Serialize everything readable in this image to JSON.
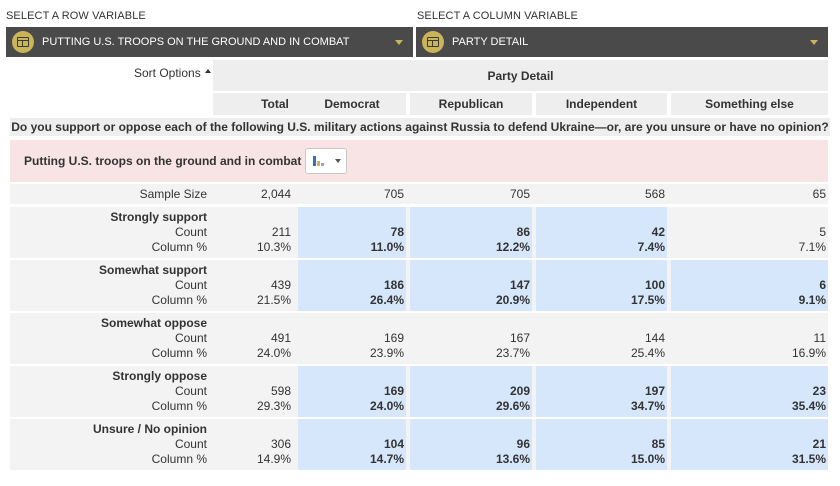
{
  "row_select": {
    "label": "SELECT A ROW VARIABLE",
    "value": "PUTTING U.S. TROOPS ON THE GROUND AND IN COMBAT"
  },
  "col_select": {
    "label": "SELECT A COLUMN VARIABLE",
    "value": "PARTY DETAIL"
  },
  "sort_options": "Sort Options",
  "column_group": "Party Detail",
  "columns": [
    "Total",
    "Democrat",
    "Republican",
    "Independent",
    "Something else"
  ],
  "question": "Do you support or oppose each of the following U.S. military actions against Russia to defend Ukraine—or, are you unsure or have no opinion?",
  "row_variable_title": "Putting U.S. troops on the ground and in combat",
  "chart_type_icon": "bar-chart-icon",
  "sample_size": {
    "label": "Sample Size",
    "values": [
      "2,044",
      "705",
      "705",
      "568",
      "65"
    ]
  },
  "count_label": "Count",
  "colpct_label": "Column %",
  "highlight_color": "#d6e7fb",
  "rows": [
    {
      "label": "Strongly support",
      "counts": [
        "211",
        "78",
        "86",
        "42",
        "5"
      ],
      "pcts": [
        "10.3%",
        "11.0%",
        "12.2%",
        "7.4%",
        "7.1%"
      ],
      "hl": [
        false,
        true,
        true,
        true,
        false
      ]
    },
    {
      "label": "Somewhat support",
      "counts": [
        "439",
        "186",
        "147",
        "100",
        "6"
      ],
      "pcts": [
        "21.5%",
        "26.4%",
        "20.9%",
        "17.5%",
        "9.1%"
      ],
      "hl": [
        false,
        true,
        true,
        true,
        true
      ]
    },
    {
      "label": "Somewhat oppose",
      "counts": [
        "491",
        "169",
        "167",
        "144",
        "11"
      ],
      "pcts": [
        "24.0%",
        "23.9%",
        "23.7%",
        "25.4%",
        "16.9%"
      ],
      "hl": [
        false,
        false,
        false,
        false,
        false
      ]
    },
    {
      "label": "Strongly oppose",
      "counts": [
        "598",
        "169",
        "209",
        "197",
        "23"
      ],
      "pcts": [
        "29.3%",
        "24.0%",
        "29.6%",
        "34.7%",
        "35.4%"
      ],
      "hl": [
        false,
        true,
        true,
        true,
        true
      ]
    },
    {
      "label": "Unsure / No opinion",
      "counts": [
        "306",
        "104",
        "96",
        "85",
        "21"
      ],
      "pcts": [
        "14.9%",
        "14.7%",
        "13.6%",
        "15.0%",
        "31.5%"
      ],
      "hl": [
        false,
        true,
        true,
        true,
        true
      ]
    }
  ]
}
